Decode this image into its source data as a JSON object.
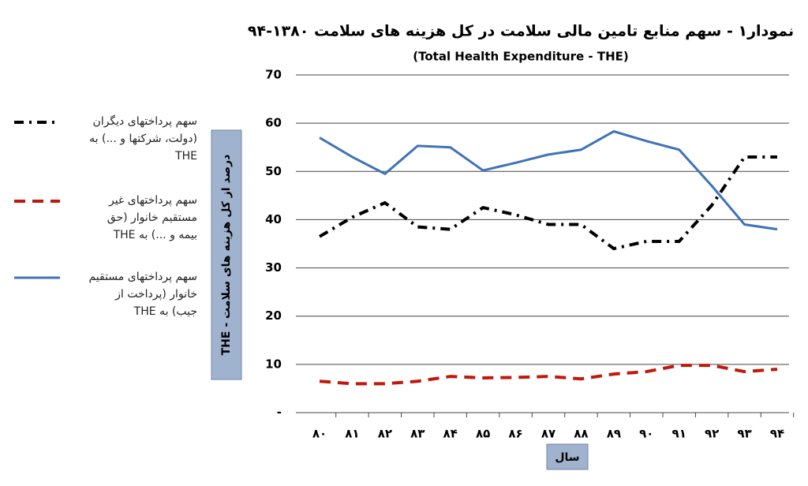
{
  "chart_data": {
    "type": "line",
    "title": "نمودار۱ - سهم منابع تامین مالی سلامت در کل هزینه های سلامت ۱۳۸۰-۹۴",
    "subtitle": "(Total Health Expenditure - THE)",
    "y_label": "درصد از کل هزینه های سلامت - THE",
    "x_label": "سال",
    "categories": [
      "۸۰",
      "۸۱",
      "۸۲",
      "۸۳",
      "۸۴",
      "۸۵",
      "۸۶",
      "۸۷",
      "۸۸",
      "۸۹",
      "۹۰",
      "۹۱",
      "۹۲",
      "۹۳",
      "۹۴"
    ],
    "ylim": [
      0,
      70
    ],
    "yticks": [
      {
        "value": 0,
        "label": "-"
      },
      10,
      20,
      30,
      40,
      50,
      60,
      70
    ],
    "grid": true,
    "series": [
      {
        "name": "سهم پرداختهای دیگران (دولت، شرکتها و ...) به THE",
        "color": "#000000",
        "dash": "dash-dot",
        "values": [
          36.5,
          40.5,
          43.5,
          38.5,
          38,
          42.5,
          41,
          39,
          39,
          34,
          35.5,
          35.5,
          43,
          53,
          53
        ]
      },
      {
        "name": "سهم پرداختهای غیر مستقیم خانوار (حق بیمه و ...) به THE",
        "color": "#c0180c",
        "dash": "dashed",
        "values": [
          6.5,
          6,
          6,
          6.5,
          7.5,
          7.2,
          7.3,
          7.5,
          7,
          8,
          8.5,
          9.8,
          9.8,
          8.5,
          9
        ]
      },
      {
        "name": "سهم پرداختهای مستقیم خانوار (پرداخت از جیب) به THE",
        "color": "#3f72b8",
        "dash": "solid",
        "values": [
          57,
          53,
          49.5,
          55.3,
          55,
          50.2,
          51.8,
          53.5,
          54.5,
          58.3,
          56.3,
          54.5,
          47,
          39,
          38
        ]
      }
    ]
  }
}
